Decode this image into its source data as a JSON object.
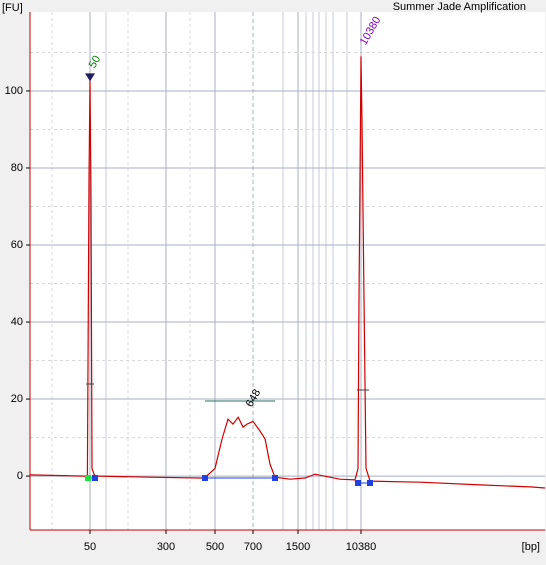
{
  "chart_data": {
    "type": "line",
    "title": "Summer Jade Amplification",
    "ylabel": "[FU]",
    "xlabel": "[bp]",
    "xscale": "ladder",
    "xlim": [
      12,
      2900000
    ],
    "ylim": [
      -14,
      120.5
    ],
    "xticks": [
      50,
      300,
      500,
      700,
      1500,
      10380
    ],
    "yticks": [
      0,
      20,
      40,
      60,
      80,
      100
    ],
    "grid": true,
    "series": [
      {
        "color": "#d00000",
        "x": [
          12,
          44.5,
          47,
          48.8,
          50,
          51.2,
          52.4,
          56,
          63,
          206,
          428,
          448,
          500,
          532,
          561,
          586,
          614,
          641,
          664,
          700,
          788,
          859,
          934,
          1016,
          1310,
          1860,
          2530,
          5450,
          8630,
          9470,
          9750,
          10380,
          10700,
          11380,
          12100,
          13700,
          63500,
          401000,
          1860000,
          2900000
        ],
        "values": [
          0.3,
          0,
          0,
          77,
          103,
          72,
          2,
          0,
          0,
          -0.3,
          -0.5,
          -0.5,
          2,
          9.6,
          14.8,
          13.5,
          15.3,
          12.7,
          13.5,
          14.2,
          11.7,
          9.6,
          3.1,
          -0.3,
          -0.8,
          -0.5,
          0.5,
          -0.8,
          -1,
          2,
          46,
          109,
          92,
          46,
          2,
          -1.3,
          -1.6,
          -2.3,
          -2.8,
          -3.1
        ]
      }
    ],
    "annotations": [
      {
        "text": "50",
        "x": 50,
        "y": 103,
        "color": "#008000"
      },
      {
        "text": "648",
        "x": 664,
        "y": 15,
        "color": "#000000"
      },
      {
        "text": "10380",
        "x": 10380,
        "y": 109,
        "color": "#8000c0"
      }
    ]
  }
}
